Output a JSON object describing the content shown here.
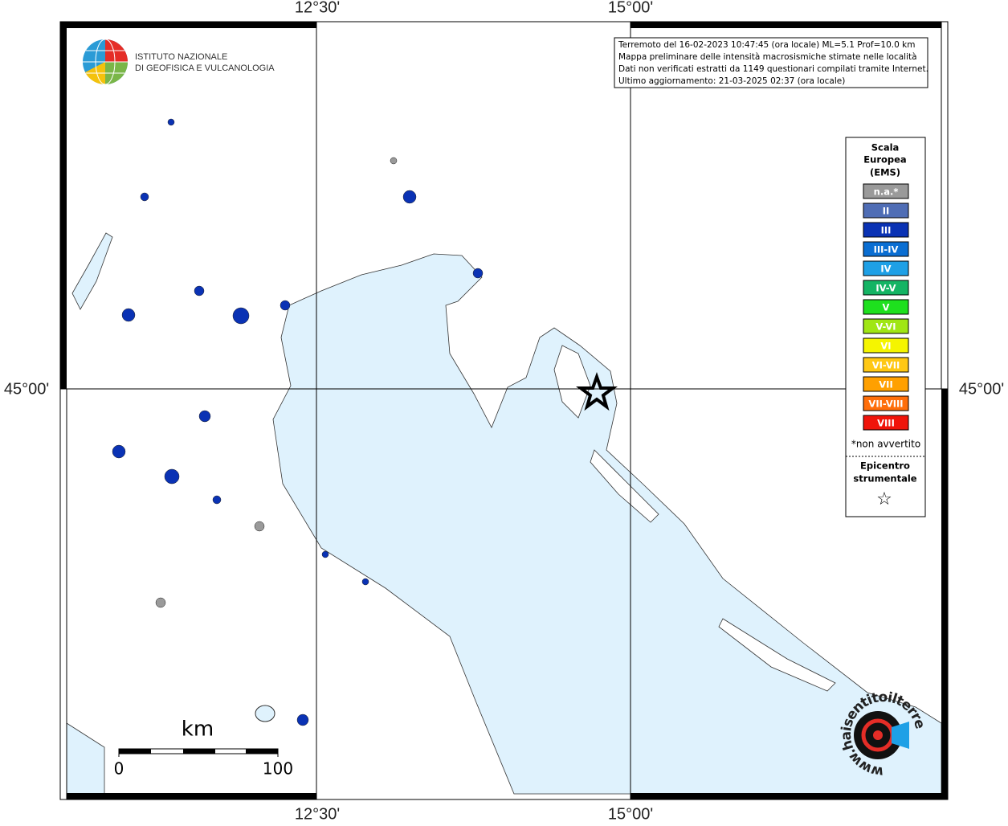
{
  "map": {
    "grid_labels": {
      "top": [
        "12°30'",
        "15°00'"
      ],
      "bottom": [
        "12°30'",
        "15°00'"
      ],
      "left": "45°00'",
      "right": "45°00'"
    },
    "logo": {
      "lines": [
        "ISTITUTO NAZIONALE",
        "DI GEOFISICA E VULCANOLOGIA"
      ]
    },
    "info": [
      "Terremoto del 16-02-2023 10:47:45 (ora locale) ML=5.1 Prof=10.0 km",
      "Mappa preliminare delle intensità macrosismiche stimate nelle località",
      "Dati non verificati estratti da 1149 questionari compilati tramite Internet.",
      "Ultimo aggiornamento: 21-03-2025 02:37 (ora locale)"
    ],
    "legend": {
      "title": [
        "Scala",
        "Europea",
        "(EMS)"
      ],
      "items": [
        {
          "label": "n.a.*",
          "color": "#9a9a9a"
        },
        {
          "label": "II",
          "color": "#4f6db5"
        },
        {
          "label": "III",
          "color": "#0a32b4"
        },
        {
          "label": "III-IV",
          "color": "#0a6ed2"
        },
        {
          "label": "IV",
          "color": "#1ea0e6"
        },
        {
          "label": "IV-V",
          "color": "#14b464"
        },
        {
          "label": "V",
          "color": "#1ee01e"
        },
        {
          "label": "V-VI",
          "color": "#a0e614"
        },
        {
          "label": "VI",
          "color": "#f5f500"
        },
        {
          "label": "VI-VII",
          "color": "#ffc814"
        },
        {
          "label": "VII",
          "color": "#ffa000"
        },
        {
          "label": "VII-VIII",
          "color": "#ff6e0a"
        },
        {
          "label": "VIII",
          "color": "#f0140a"
        }
      ],
      "note": "*non avvertito",
      "epicenter_title": [
        "Epicentro",
        "strumentale"
      ],
      "epicenter_symbol": "☆"
    },
    "scale_bar": {
      "unit": "km",
      "labels": [
        "0",
        "100"
      ]
    },
    "watermark": "www.haisentitoilterremoto.it"
  }
}
